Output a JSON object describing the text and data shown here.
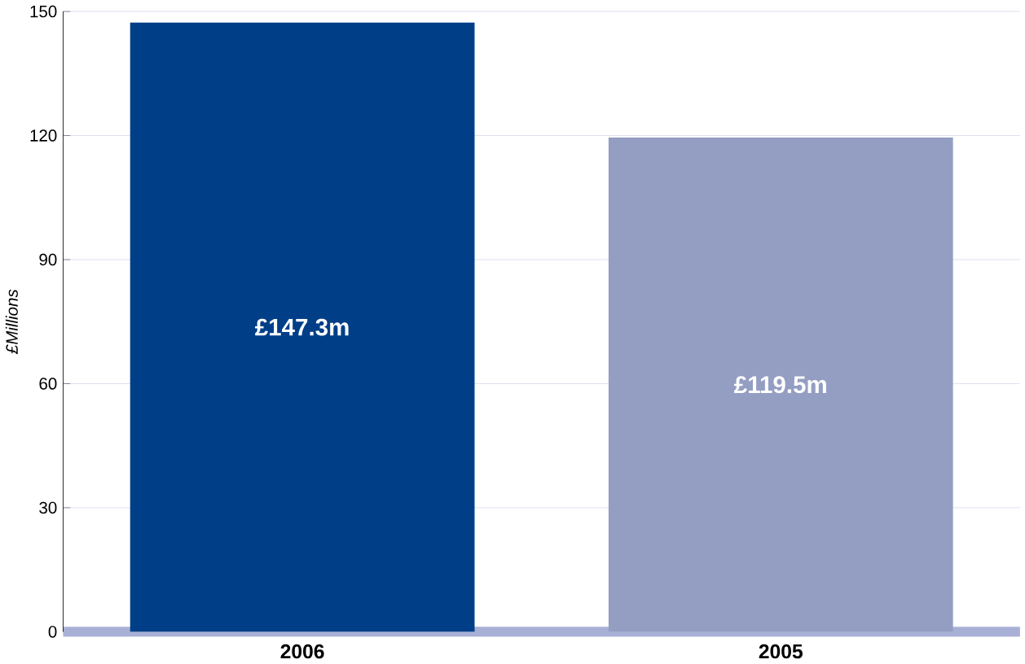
{
  "chart_data": {
    "type": "bar",
    "ylabel": "£Millions",
    "categories": [
      "2006",
      "2005"
    ],
    "values": [
      147.3,
      119.5
    ],
    "colors": [
      "#003f87",
      "#949ec3"
    ],
    "value_labels": [
      "£147.3m",
      "£119.5m"
    ],
    "ylim": [
      0,
      150
    ],
    "yticks": [
      0,
      30,
      60,
      90,
      120,
      150
    ],
    "grid": "y"
  }
}
